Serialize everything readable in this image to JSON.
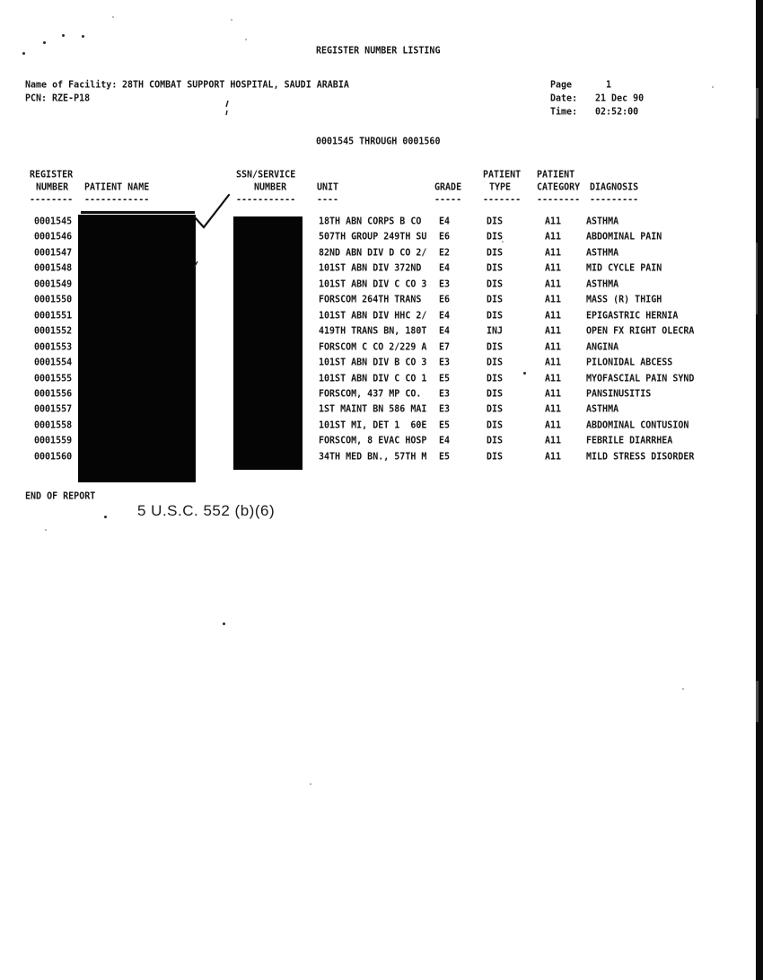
{
  "page": {
    "title": "REGISTER NUMBER LISTING",
    "header": {
      "facility_label": "Name of Facility:",
      "facility_value": "28TH COMBAT SUPPORT HOSPITAL, SAUDI ARABIA",
      "pcn_label": "PCN:",
      "pcn_value": "RZE-P18",
      "page_label": "Page",
      "page_number": "1",
      "date_label": "Date:",
      "date_value": "21 Dec 90",
      "time_label": "Time:",
      "time_value": "02:52:00"
    },
    "range_line": "0001545 THROUGH 0001560",
    "footer": {
      "end_of_report": "END OF REPORT",
      "foia_stamp": "5 U.S.C. 552 (b)(6)"
    }
  },
  "annotations": {
    "checkmark": "handwritten check mark beside first patient name",
    "redactions": "patient name and SSN columns blacked out"
  },
  "table": {
    "columns": [
      {
        "id": "register-number",
        "lines": [
          "REGISTER",
          "NUMBER"
        ],
        "dashes": "--------"
      },
      {
        "id": "patient-name",
        "lines": [
          "",
          "PATIENT NAME"
        ],
        "dashes": "------------"
      },
      {
        "id": "ssn-service-number",
        "lines": [
          "SSN/SERVICE",
          "NUMBER"
        ],
        "dashes": "-----------"
      },
      {
        "id": "unit",
        "lines": [
          "",
          "UNIT"
        ],
        "dashes": "----"
      },
      {
        "id": "grade",
        "lines": [
          "",
          "GRADE"
        ],
        "dashes": "-----"
      },
      {
        "id": "patient-type",
        "lines": [
          "PATIENT",
          "TYPE"
        ],
        "dashes": "-------"
      },
      {
        "id": "patient-category",
        "lines": [
          "PATIENT",
          "CATEGORY"
        ],
        "dashes": "--------"
      },
      {
        "id": "diagnosis",
        "lines": [
          "",
          "DIAGNOSIS"
        ],
        "dashes": "---------"
      }
    ],
    "redacted_columns": [
      "patient-name",
      "ssn-service-number"
    ],
    "rows": [
      {
        "register": "0001545",
        "unit": "18TH ABN CORPS B CO",
        "grade": "E4",
        "type": "DIS",
        "category": "A11",
        "diagnosis": "ASTHMA"
      },
      {
        "register": "0001546",
        "unit": "507TH GROUP 249TH SU",
        "grade": "E6",
        "type": "DIS",
        "category": "A11",
        "diagnosis": "ABDOMINAL PAIN"
      },
      {
        "register": "0001547",
        "unit": "82ND ABN DIV D CO 2/",
        "grade": "E2",
        "type": "DIS",
        "category": "A11",
        "diagnosis": "ASTHMA"
      },
      {
        "register": "0001548",
        "unit": "101ST ABN DIV 372ND",
        "grade": "E4",
        "type": "DIS",
        "category": "A11",
        "diagnosis": "MID CYCLE PAIN"
      },
      {
        "register": "0001549",
        "unit": "101ST ABN DIV C CO 3",
        "grade": "E3",
        "type": "DIS",
        "category": "A11",
        "diagnosis": "ASTHMA"
      },
      {
        "register": "0001550",
        "unit": "FORSCOM 264TH TRANS",
        "grade": "E6",
        "type": "DIS",
        "category": "A11",
        "diagnosis": "MASS (R) THIGH"
      },
      {
        "register": "0001551",
        "unit": "101ST ABN DIV HHC 2/",
        "grade": "E4",
        "type": "DIS",
        "category": "A11",
        "diagnosis": "EPIGASTRIC HERNIA"
      },
      {
        "register": "0001552",
        "unit": "419TH TRANS BN, 180T",
        "grade": "E4",
        "type": "INJ",
        "category": "A11",
        "diagnosis": "OPEN FX RIGHT OLECRA"
      },
      {
        "register": "0001553",
        "unit": "FORSCOM C CO 2/229 A",
        "grade": "E7",
        "type": "DIS",
        "category": "A11",
        "diagnosis": "ANGINA"
      },
      {
        "register": "0001554",
        "unit": "101ST ABN DIV B CO 3",
        "grade": "E3",
        "type": "DIS",
        "category": "A11",
        "diagnosis": "PILONIDAL ABCESS"
      },
      {
        "register": "0001555",
        "unit": "101ST ABN DIV C CO 1",
        "grade": "E5",
        "type": "DIS",
        "category": "A11",
        "diagnosis": "MYOFASCIAL PAIN SYND"
      },
      {
        "register": "0001556",
        "unit": "FORSCOM, 437 MP CO.",
        "grade": "E3",
        "type": "DIS",
        "category": "A11",
        "diagnosis": "PANSINUSITIS"
      },
      {
        "register": "0001557",
        "unit": "1ST MAINT BN 586 MAI",
        "grade": "E3",
        "type": "DIS",
        "category": "A11",
        "diagnosis": "ASTHMA"
      },
      {
        "register": "0001558",
        "unit": "101ST MI, DET 1  60E",
        "grade": "E5",
        "type": "DIS",
        "category": "A11",
        "diagnosis": "ABDOMINAL CONTUSION"
      },
      {
        "register": "0001559",
        "unit": "FORSCOM, 8 EVAC HOSP",
        "grade": "E4",
        "type": "DIS",
        "category": "A11",
        "diagnosis": "FEBRILE DIARRHEA"
      },
      {
        "register": "0001560",
        "unit": "34TH MED BN., 57TH M",
        "grade": "E5",
        "type": "DIS",
        "category": "A11",
        "diagnosis": "MILD STRESS DISORDER"
      }
    ]
  }
}
